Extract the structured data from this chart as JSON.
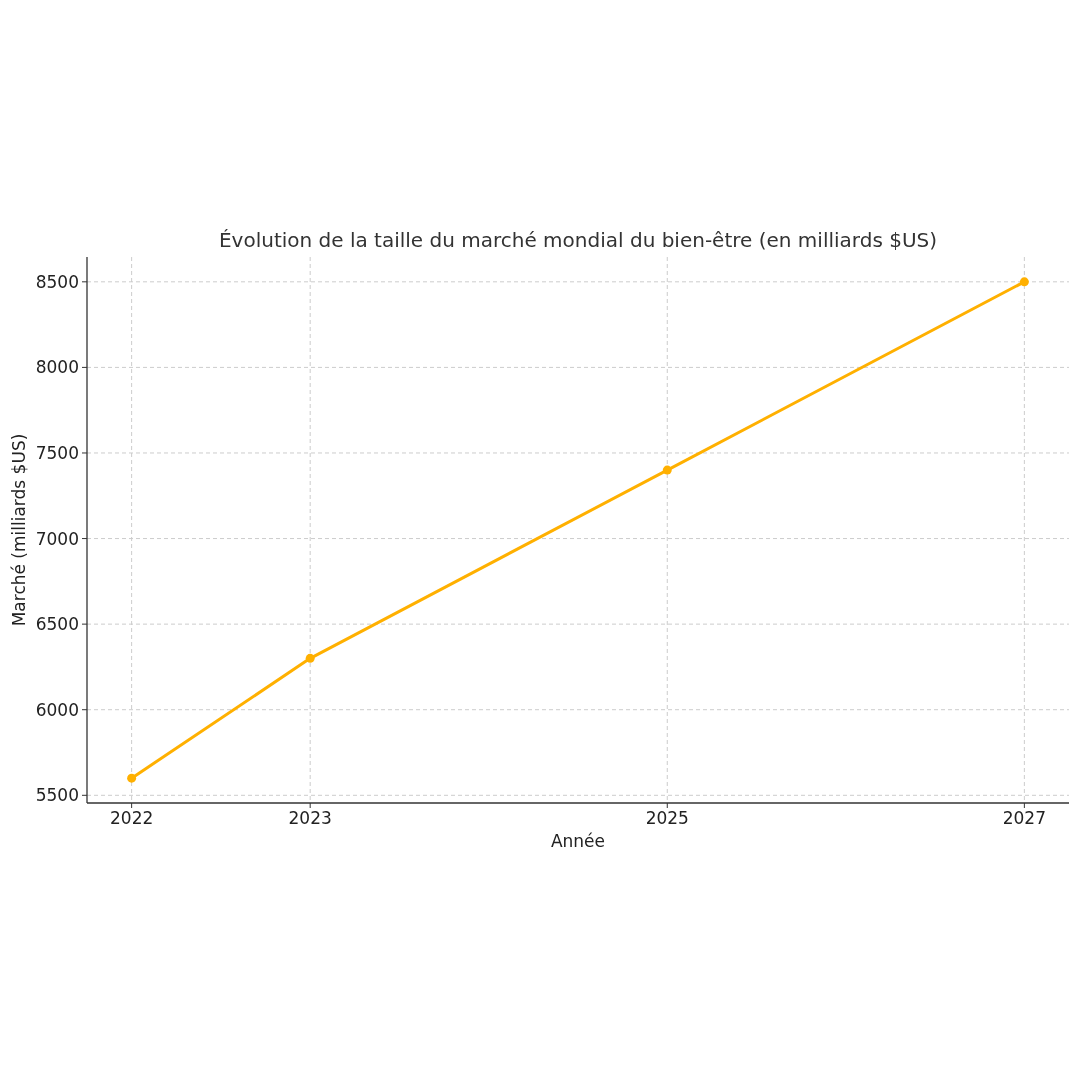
{
  "chart_data": {
    "type": "line",
    "title": "Évolution de la taille du marché mondial du bien-être (en milliards $US)",
    "xlabel": "Année",
    "ylabel": "Marché (milliards $US)",
    "x": [
      2022,
      2023,
      2025,
      2027
    ],
    "series": [
      {
        "color": "#ffb000",
        "values": [
          5600,
          6300,
          7400,
          8500
        ]
      }
    ],
    "xlim": [
      2021.75,
      2027.25
    ],
    "xticks": [
      2022,
      2023,
      2025,
      2027
    ],
    "ylim": [
      5455,
      8645
    ],
    "yticks": [
      5500,
      6000,
      6500,
      7000,
      7500,
      8000,
      8500
    ],
    "grid": true,
    "marker": "circle",
    "line_style": "solid"
  }
}
